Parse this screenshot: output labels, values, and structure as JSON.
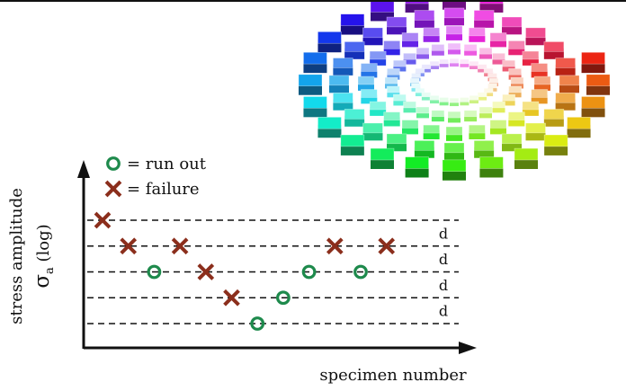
{
  "chart_data": {
    "type": "scatter",
    "title": "",
    "xlabel": "specimen number",
    "ylabel_line1": "stress amplitude",
    "ylabel_line2_symbol": "σ",
    "ylabel_line2_sub": "a",
    "ylabel_line2_suffix": " (log)",
    "step_label": "d",
    "levels": [
      1,
      2,
      3,
      4,
      5
    ],
    "legend": [
      {
        "marker": "circle",
        "label": "= run out",
        "color": "#1e8a4c"
      },
      {
        "marker": "x",
        "label": "= failure",
        "color": "#8b2e1c"
      }
    ],
    "series": [
      {
        "name": "run out",
        "marker": "circle",
        "color": "#1e8a4c",
        "points": [
          [
            3,
            3
          ],
          [
            7,
            1
          ],
          [
            8,
            2
          ],
          [
            9,
            3
          ],
          [
            11,
            3
          ]
        ]
      },
      {
        "name": "failure",
        "marker": "x",
        "color": "#8b2e1c",
        "points": [
          [
            1,
            5
          ],
          [
            2,
            4
          ],
          [
            4,
            4
          ],
          [
            5,
            3
          ],
          [
            6,
            2
          ],
          [
            10,
            4
          ],
          [
            12,
            4
          ]
        ]
      }
    ],
    "grid": "dashed horizontal at each stress level"
  },
  "illustration": {
    "name": "color-solid-3d",
    "hue_steps": 24
  }
}
